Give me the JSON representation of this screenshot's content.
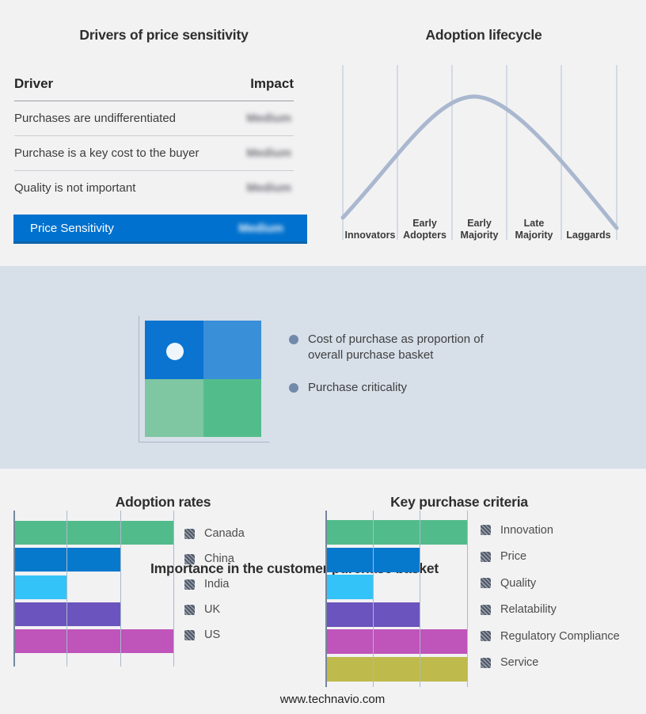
{
  "drivers": {
    "title": "Drivers of price sensitivity",
    "columns": {
      "driver": "Driver",
      "impact": "Impact"
    },
    "rows": [
      {
        "driver": "Purchases are undifferentiated",
        "impact": "Medium"
      },
      {
        "driver": "Purchase is a key cost to the buyer",
        "impact": "Medium"
      },
      {
        "driver": "Quality is not important",
        "impact": "Medium"
      }
    ],
    "summary": {
      "label": "Price Sensitivity",
      "impact": "Medium"
    },
    "impact_values_obscured": true,
    "accent_color": "#0071ce"
  },
  "lifecycle": {
    "title": "Adoption lifecycle",
    "stages": [
      {
        "top": "",
        "bottom": "Innovators"
      },
      {
        "top": "Early",
        "bottom": "Adopters"
      },
      {
        "top": "Early",
        "bottom": "Majority"
      },
      {
        "top": "Late",
        "bottom": "Majority"
      },
      {
        "top": "",
        "bottom": "Laggards"
      }
    ],
    "curve_color": "#a9b8cf",
    "gridline_color": "#b7c2d6"
  },
  "basket": {
    "title": "Importance in the customer purchase basket",
    "bullets": [
      "Cost of purchase as proportion of overall purchase basket",
      "Purchase criticality"
    ],
    "quadrant_colors": [
      "#0b74d1",
      "#3a8fd9",
      "#7fc6a3",
      "#52bd8b"
    ],
    "band_color": "#d7dfe9"
  },
  "footer": {
    "website": "www.technavio.com"
  },
  "chart_data": [
    {
      "type": "line",
      "title": "Adoption lifecycle",
      "shape": "bell-curve",
      "x_categories": [
        "Innovators",
        "Early Adopters",
        "Early Majority",
        "Late Majority",
        "Laggards"
      ],
      "peak_at": "Early Majority",
      "grid": "vertical stage separators",
      "line_color": "#a9b8cf"
    },
    {
      "type": "bar",
      "title": "Adoption rates",
      "orientation": "horizontal",
      "categories": [
        "Canada",
        "China",
        "India",
        "UK",
        "US"
      ],
      "values": [
        3,
        2,
        1,
        2,
        3
      ],
      "xlim": [
        0,
        3
      ],
      "bar_colors": [
        "#52bb8b",
        "#0779cd",
        "#34c3f8",
        "#6b54bd",
        "#bf54ba"
      ],
      "grid": true,
      "legend_position": "right"
    },
    {
      "type": "bar",
      "title": "Key purchase criteria",
      "orientation": "horizontal",
      "categories": [
        "Innovation",
        "Price",
        "Quality",
        "Relatability",
        "Regulatory Compliance",
        "Service"
      ],
      "values": [
        3,
        2,
        1,
        2,
        3,
        3
      ],
      "xlim": [
        0,
        3
      ],
      "bar_colors": [
        "#52bb8b",
        "#0779cd",
        "#34c3f8",
        "#6b54bd",
        "#bf54ba",
        "#bfba4c"
      ],
      "grid": true,
      "legend_position": "right"
    }
  ]
}
